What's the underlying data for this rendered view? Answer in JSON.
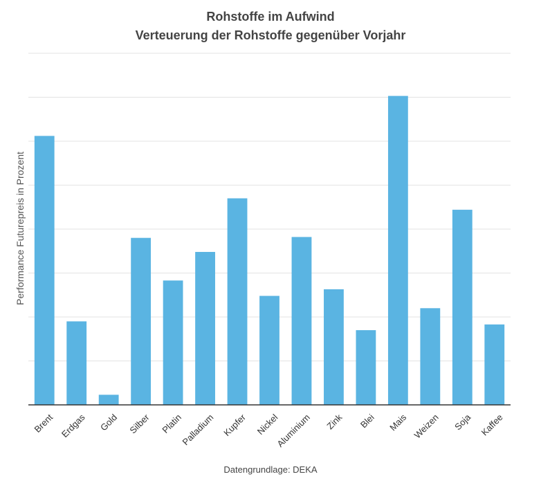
{
  "chart_data": {
    "type": "bar",
    "title": "Rohstoffe im Aufwind",
    "subtitle": "Verteuerung der Rohstoffe gegenüber Vorjahr",
    "xlabel": "",
    "ylabel": "Performance Futurepreis in Prozent",
    "source": "Datengrundlage: DEKA",
    "categories": [
      "Brent",
      "Erdgas",
      "Gold",
      "Silber",
      "Platin",
      "Palladium",
      "Kupfer",
      "Nickel",
      "Aluminium",
      "Zink",
      "Blei",
      "Mais",
      "Weizen",
      "Soja",
      "Kaffee"
    ],
    "values": [
      61.2,
      19.0,
      2.3,
      38.0,
      28.3,
      34.8,
      47.0,
      24.8,
      38.2,
      26.3,
      17.0,
      70.3,
      22.0,
      44.4,
      18.3
    ],
    "ylim": [
      0,
      80
    ],
    "grid": true,
    "color": "#5ab4e2"
  }
}
